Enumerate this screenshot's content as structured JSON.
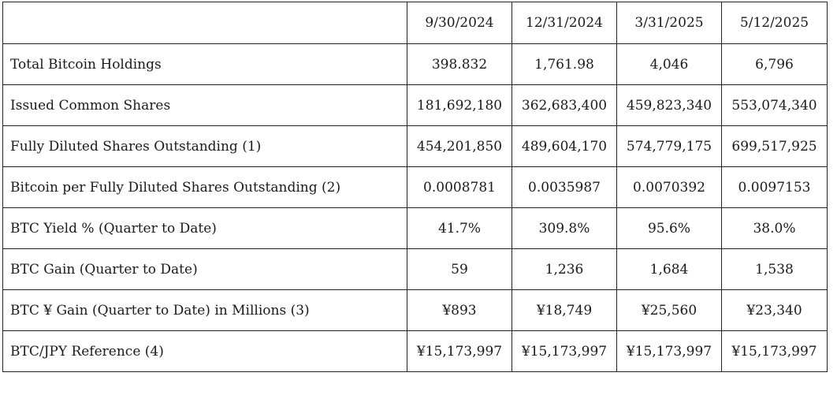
{
  "table": {
    "corner": "",
    "columns": [
      "9/30/2024",
      "12/31/2024",
      "3/31/2025",
      "5/12/2025"
    ],
    "rows": [
      {
        "label": "Total Bitcoin Holdings",
        "values": [
          "398.832",
          "1,761.98",
          "4,046",
          "6,796"
        ]
      },
      {
        "label": "Issued Common Shares",
        "values": [
          "181,692,180",
          "362,683,400",
          "459,823,340",
          "553,074,340"
        ]
      },
      {
        "label": "Fully Diluted Shares Outstanding (1)",
        "values": [
          "454,201,850",
          "489,604,170",
          "574,779,175",
          "699,517,925"
        ]
      },
      {
        "label": "Bitcoin per Fully Diluted Shares Outstanding (2)",
        "values": [
          "0.0008781",
          "0.0035987",
          "0.0070392",
          "0.0097153"
        ]
      },
      {
        "label": "BTC Yield % (Quarter to Date)",
        "values": [
          "41.7%",
          "309.8%",
          "95.6%",
          "38.0%"
        ]
      },
      {
        "label": "BTC Gain (Quarter to Date)",
        "values": [
          "59",
          "1,236",
          "1,684",
          "1,538"
        ]
      },
      {
        "label": "BTC ¥ Gain (Quarter to Date) in Millions (3)",
        "values": [
          "¥893",
          "¥18,749",
          "¥25,560",
          "¥23,340"
        ]
      },
      {
        "label": "BTC/JPY Reference (4)",
        "values": [
          "¥15,173,997",
          "¥15,173,997",
          "¥15,173,997",
          "¥15,173,997"
        ]
      }
    ]
  }
}
